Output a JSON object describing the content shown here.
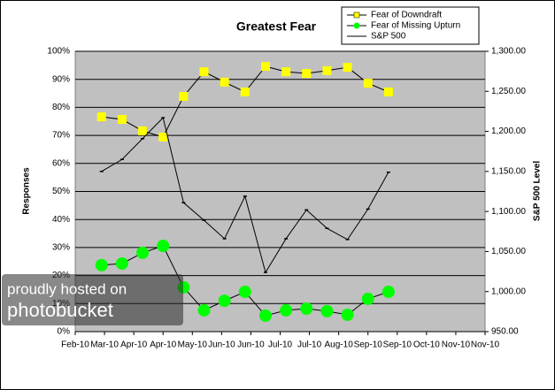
{
  "chart_data": {
    "type": "line",
    "title": "Greatest Fear",
    "y_label": "Responses",
    "y2_label": "S&P 500 Level",
    "xlim": [
      0,
      14
    ],
    "xticks": [
      {
        "value": 0,
        "label": "Feb-10"
      },
      {
        "value": 1,
        "label": "Mar-10"
      },
      {
        "value": 2,
        "label": "Apr-10"
      },
      {
        "value": 3,
        "label": "Apr-10"
      },
      {
        "value": 4,
        "label": "May-10"
      },
      {
        "value": 5,
        "label": "Jun-10"
      },
      {
        "value": 6,
        "label": "Jun-10"
      },
      {
        "value": 7,
        "label": "Jul-10"
      },
      {
        "value": 8,
        "label": "Jul-10"
      },
      {
        "value": 9,
        "label": "Aug-10"
      },
      {
        "value": 10,
        "label": "Sep-10"
      },
      {
        "value": 11,
        "label": "Sep-10"
      },
      {
        "value": 12,
        "label": "Oct-10"
      },
      {
        "value": 13,
        "label": "Nov-10"
      },
      {
        "value": 14,
        "label": "Nov-10"
      }
    ],
    "x": [
      0.9,
      1.6,
      2.3,
      3.0,
      3.7,
      4.4,
      5.1,
      5.8,
      6.5,
      7.2,
      7.9,
      8.6,
      9.3,
      10.0,
      10.7
    ],
    "ylim": [
      0,
      100
    ],
    "yticks": [
      {
        "value": 0,
        "label": "0%"
      },
      {
        "value": 10,
        "label": "10%"
      },
      {
        "value": 20,
        "label": "20%"
      },
      {
        "value": 30,
        "label": "30%"
      },
      {
        "value": 40,
        "label": "40%"
      },
      {
        "value": 50,
        "label": "50%"
      },
      {
        "value": 60,
        "label": "60%"
      },
      {
        "value": 70,
        "label": "70%"
      },
      {
        "value": 80,
        "label": "80%"
      },
      {
        "value": 90,
        "label": "90%"
      },
      {
        "value": 100,
        "label": "100%"
      }
    ],
    "y2lim": [
      950,
      1300
    ],
    "y2ticks": [
      {
        "value": 950,
        "label": "950.00"
      },
      {
        "value": 1000,
        "label": "1,000.00"
      },
      {
        "value": 1050,
        "label": "1,050.00"
      },
      {
        "value": 1100,
        "label": "1,100.00"
      },
      {
        "value": 1150,
        "label": "1,150.00"
      },
      {
        "value": 1200,
        "label": "1,200.00"
      },
      {
        "value": 1250,
        "label": "1,250.00"
      },
      {
        "value": 1300,
        "label": "1,300.00"
      }
    ],
    "grid": true,
    "series": [
      {
        "name": "Fear of Downdraft",
        "color": "#ffff00",
        "marker": "square",
        "values": [
          76.6,
          75.7,
          71.6,
          69.4,
          83.9,
          92.7,
          89,
          85.5,
          94.6,
          92.7,
          92.1,
          93.1,
          94.3,
          88.6,
          85.5
        ]
      },
      {
        "name": "Fear of Missing Upturn",
        "color": "#00ff00",
        "marker": "circle",
        "values": [
          23.7,
          24.3,
          28.1,
          30.6,
          15.8,
          7.6,
          11,
          14.2,
          5.7,
          7.6,
          8.2,
          7.3,
          6,
          11.7,
          14.2
        ]
      },
      {
        "name": "S&P 500",
        "color": "#000000",
        "marker": "dash",
        "axis": "y2",
        "values": [
          1150,
          1165,
          1191,
          1217,
          1111,
          1089,
          1066,
          1119,
          1024,
          1066,
          1102,
          1079,
          1065,
          1103,
          1149
        ]
      }
    ]
  },
  "watermark": {
    "line1": "proudly hosted on",
    "line2": "photobucket"
  }
}
